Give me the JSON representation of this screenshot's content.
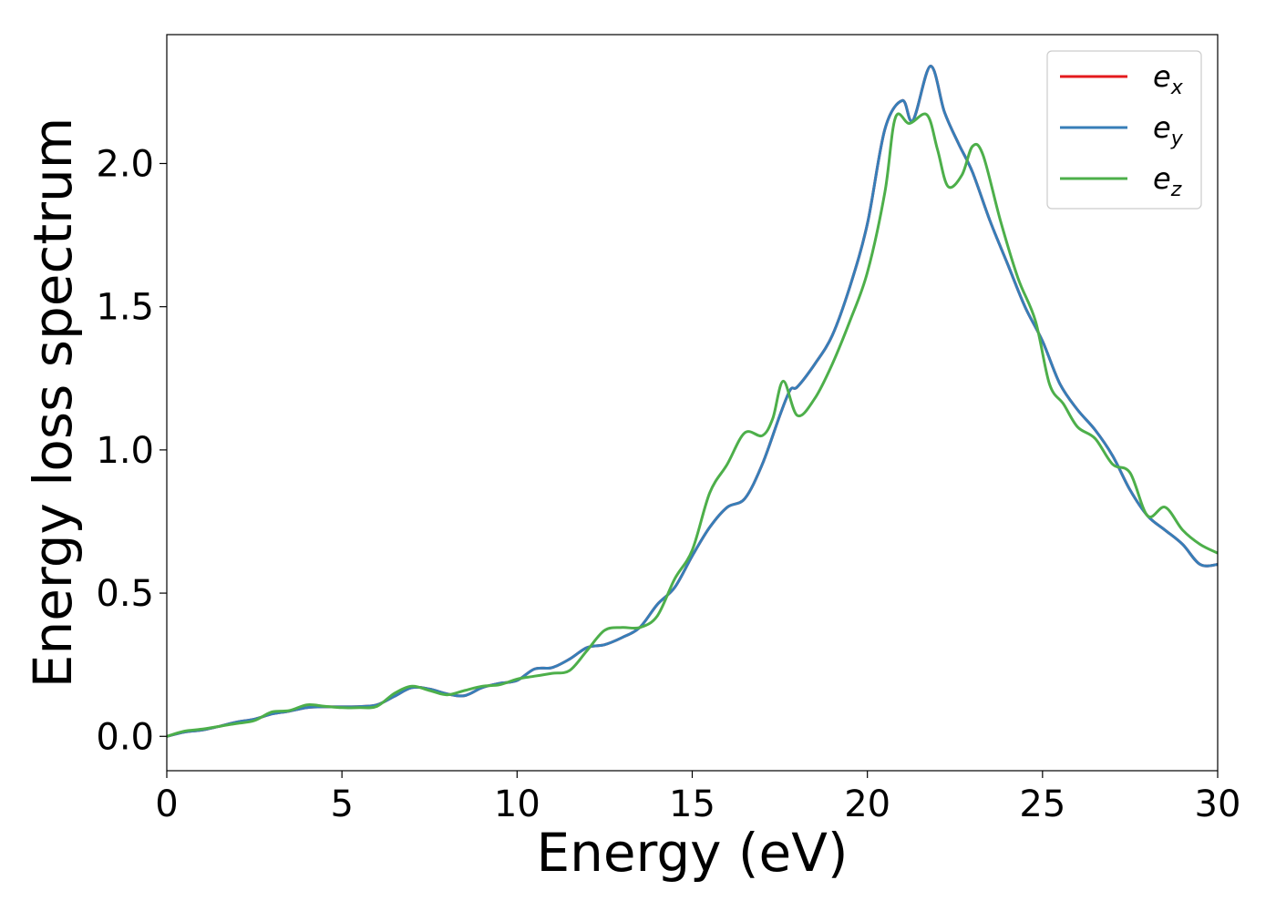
{
  "chart_data": {
    "type": "line",
    "xlabel": "Energy (eV)",
    "ylabel": "Energy loss spectrum",
    "xlim": [
      0,
      30
    ],
    "ylim": [
      -0.12,
      2.45
    ],
    "xticks": [
      0,
      5,
      10,
      15,
      20,
      25,
      30
    ],
    "xtick_labels": [
      "0",
      "5",
      "10",
      "15",
      "20",
      "25",
      "30"
    ],
    "yticks": [
      0.0,
      0.5,
      1.0,
      1.5,
      2.0
    ],
    "ytick_labels": [
      "0.0",
      "0.5",
      "1.0",
      "1.5",
      "2.0"
    ],
    "grid": false,
    "legend_position": "top-right",
    "series": [
      {
        "name": "e",
        "subscript": "x",
        "color": "#e41a1c",
        "points": [
          [
            0,
            0.0
          ],
          [
            0.5,
            0.015
          ],
          [
            1,
            0.022
          ],
          [
            1.5,
            0.035
          ],
          [
            2,
            0.05
          ],
          [
            2.5,
            0.06
          ],
          [
            3,
            0.078
          ],
          [
            3.5,
            0.088
          ],
          [
            4,
            0.1
          ],
          [
            4.5,
            0.103
          ],
          [
            5,
            0.103
          ],
          [
            5.5,
            0.104
          ],
          [
            6,
            0.11
          ],
          [
            6.5,
            0.14
          ],
          [
            7,
            0.17
          ],
          [
            7.5,
            0.165
          ],
          [
            8,
            0.148
          ],
          [
            8.5,
            0.142
          ],
          [
            9,
            0.17
          ],
          [
            9.5,
            0.185
          ],
          [
            10,
            0.195
          ],
          [
            10.5,
            0.235
          ],
          [
            11,
            0.24
          ],
          [
            11.5,
            0.27
          ],
          [
            12,
            0.31
          ],
          [
            12.5,
            0.32
          ],
          [
            13,
            0.345
          ],
          [
            13.5,
            0.38
          ],
          [
            14,
            0.46
          ],
          [
            14.5,
            0.52
          ],
          [
            15,
            0.63
          ],
          [
            15.5,
            0.73
          ],
          [
            16,
            0.8
          ],
          [
            16.5,
            0.83
          ],
          [
            17,
            0.95
          ],
          [
            17.5,
            1.12
          ],
          [
            17.8,
            1.21
          ],
          [
            18,
            1.22
          ],
          [
            18.5,
            1.3
          ],
          [
            19,
            1.4
          ],
          [
            19.5,
            1.57
          ],
          [
            20,
            1.79
          ],
          [
            20.5,
            2.12
          ],
          [
            21,
            2.22
          ],
          [
            21.3,
            2.15
          ],
          [
            21.8,
            2.34
          ],
          [
            22.2,
            2.18
          ],
          [
            22.6,
            2.07
          ],
          [
            23,
            1.97
          ],
          [
            23.5,
            1.8
          ],
          [
            24,
            1.65
          ],
          [
            24.5,
            1.5
          ],
          [
            25,
            1.38
          ],
          [
            25.5,
            1.23
          ],
          [
            26,
            1.14
          ],
          [
            26.5,
            1.07
          ],
          [
            27,
            0.98
          ],
          [
            27.5,
            0.86
          ],
          [
            28,
            0.77
          ],
          [
            28.5,
            0.72
          ],
          [
            29,
            0.67
          ],
          [
            29.5,
            0.6
          ],
          [
            30,
            0.6
          ]
        ]
      },
      {
        "name": "e",
        "subscript": "y",
        "color": "#377eb8",
        "points": [
          [
            0,
            0.0
          ],
          [
            0.5,
            0.015
          ],
          [
            1,
            0.022
          ],
          [
            1.5,
            0.035
          ],
          [
            2,
            0.05
          ],
          [
            2.5,
            0.06
          ],
          [
            3,
            0.078
          ],
          [
            3.5,
            0.088
          ],
          [
            4,
            0.1
          ],
          [
            4.5,
            0.103
          ],
          [
            5,
            0.103
          ],
          [
            5.5,
            0.104
          ],
          [
            6,
            0.11
          ],
          [
            6.5,
            0.14
          ],
          [
            7,
            0.17
          ],
          [
            7.5,
            0.165
          ],
          [
            8,
            0.148
          ],
          [
            8.5,
            0.142
          ],
          [
            9,
            0.17
          ],
          [
            9.5,
            0.185
          ],
          [
            10,
            0.195
          ],
          [
            10.5,
            0.235
          ],
          [
            11,
            0.24
          ],
          [
            11.5,
            0.27
          ],
          [
            12,
            0.31
          ],
          [
            12.5,
            0.32
          ],
          [
            13,
            0.345
          ],
          [
            13.5,
            0.38
          ],
          [
            14,
            0.46
          ],
          [
            14.5,
            0.52
          ],
          [
            15,
            0.63
          ],
          [
            15.5,
            0.73
          ],
          [
            16,
            0.8
          ],
          [
            16.5,
            0.83
          ],
          [
            17,
            0.95
          ],
          [
            17.5,
            1.12
          ],
          [
            17.8,
            1.21
          ],
          [
            18,
            1.22
          ],
          [
            18.5,
            1.3
          ],
          [
            19,
            1.4
          ],
          [
            19.5,
            1.57
          ],
          [
            20,
            1.79
          ],
          [
            20.5,
            2.12
          ],
          [
            21,
            2.22
          ],
          [
            21.3,
            2.15
          ],
          [
            21.8,
            2.34
          ],
          [
            22.2,
            2.18
          ],
          [
            22.6,
            2.07
          ],
          [
            23,
            1.97
          ],
          [
            23.5,
            1.8
          ],
          [
            24,
            1.65
          ],
          [
            24.5,
            1.5
          ],
          [
            25,
            1.38
          ],
          [
            25.5,
            1.23
          ],
          [
            26,
            1.14
          ],
          [
            26.5,
            1.07
          ],
          [
            27,
            0.98
          ],
          [
            27.5,
            0.86
          ],
          [
            28,
            0.77
          ],
          [
            28.5,
            0.72
          ],
          [
            29,
            0.67
          ],
          [
            29.5,
            0.6
          ],
          [
            30,
            0.6
          ]
        ]
      },
      {
        "name": "e",
        "subscript": "z",
        "color": "#4daf4a",
        "points": [
          [
            0,
            0.0
          ],
          [
            0.5,
            0.018
          ],
          [
            1,
            0.025
          ],
          [
            1.5,
            0.035
          ],
          [
            2,
            0.045
          ],
          [
            2.5,
            0.055
          ],
          [
            3,
            0.085
          ],
          [
            3.5,
            0.09
          ],
          [
            4,
            0.11
          ],
          [
            4.5,
            0.105
          ],
          [
            5,
            0.1
          ],
          [
            5.5,
            0.1
          ],
          [
            6,
            0.105
          ],
          [
            6.5,
            0.15
          ],
          [
            7,
            0.175
          ],
          [
            7.5,
            0.16
          ],
          [
            8,
            0.145
          ],
          [
            8.5,
            0.16
          ],
          [
            9,
            0.175
          ],
          [
            9.5,
            0.18
          ],
          [
            10,
            0.2
          ],
          [
            10.5,
            0.21
          ],
          [
            11,
            0.22
          ],
          [
            11.5,
            0.23
          ],
          [
            12,
            0.3
          ],
          [
            12.5,
            0.37
          ],
          [
            13,
            0.38
          ],
          [
            13.5,
            0.38
          ],
          [
            14,
            0.42
          ],
          [
            14.5,
            0.55
          ],
          [
            15,
            0.65
          ],
          [
            15.5,
            0.85
          ],
          [
            16,
            0.95
          ],
          [
            16.5,
            1.06
          ],
          [
            17,
            1.05
          ],
          [
            17.3,
            1.11
          ],
          [
            17.6,
            1.24
          ],
          [
            18,
            1.12
          ],
          [
            18.5,
            1.18
          ],
          [
            19,
            1.3
          ],
          [
            19.5,
            1.45
          ],
          [
            20,
            1.62
          ],
          [
            20.5,
            1.9
          ],
          [
            20.8,
            2.16
          ],
          [
            21.2,
            2.14
          ],
          [
            21.7,
            2.17
          ],
          [
            22,
            2.05
          ],
          [
            22.3,
            1.92
          ],
          [
            22.7,
            1.96
          ],
          [
            23,
            2.06
          ],
          [
            23.3,
            2.03
          ],
          [
            23.8,
            1.8
          ],
          [
            24.3,
            1.6
          ],
          [
            24.8,
            1.45
          ],
          [
            25.2,
            1.23
          ],
          [
            25.6,
            1.16
          ],
          [
            26,
            1.08
          ],
          [
            26.5,
            1.04
          ],
          [
            27,
            0.95
          ],
          [
            27.5,
            0.92
          ],
          [
            28,
            0.77
          ],
          [
            28.5,
            0.8
          ],
          [
            29,
            0.72
          ],
          [
            29.5,
            0.67
          ],
          [
            30,
            0.64
          ]
        ]
      }
    ]
  }
}
